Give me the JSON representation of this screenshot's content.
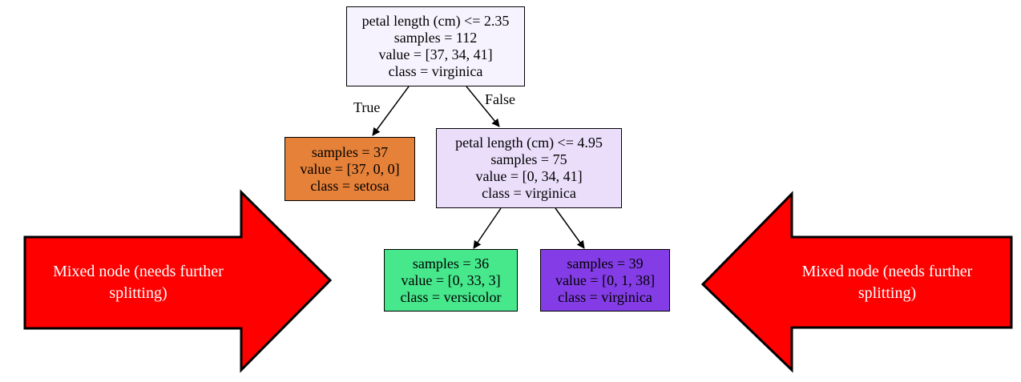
{
  "tree": {
    "root": {
      "condition": "petal length (cm) <= 2.35",
      "samples": "samples = 112",
      "value": "value = [37, 34, 41]",
      "class": "class = virginica",
      "fill": "#f7f3fe"
    },
    "left_leaf": {
      "samples": "samples = 37",
      "value": "value = [37, 0, 0]",
      "class": "class = setosa",
      "fill": "#e58139"
    },
    "right_split": {
      "condition": "petal length (cm) <= 4.95",
      "samples": "samples = 75",
      "value": "value = [0, 34, 41]",
      "class": "class = virginica",
      "fill": "#eadefb"
    },
    "versicolor_leaf": {
      "samples": "samples = 36",
      "value": "value = [0, 33, 3]",
      "class": "class = versicolor",
      "fill": "#47e78c"
    },
    "virginica_leaf": {
      "samples": "samples = 39",
      "value": "value = [0, 1, 38]",
      "class": "class = virginica",
      "fill": "#843de6"
    },
    "edge_labels": {
      "true_label": "True",
      "false_label": "False"
    }
  },
  "callouts": {
    "left": {
      "line1": "Mixed node (needs further",
      "line2": "splitting)",
      "color": "#ff0000"
    },
    "right": {
      "line1": "Mixed node (needs further",
      "line2": "splitting)",
      "color": "#ff0000"
    }
  }
}
